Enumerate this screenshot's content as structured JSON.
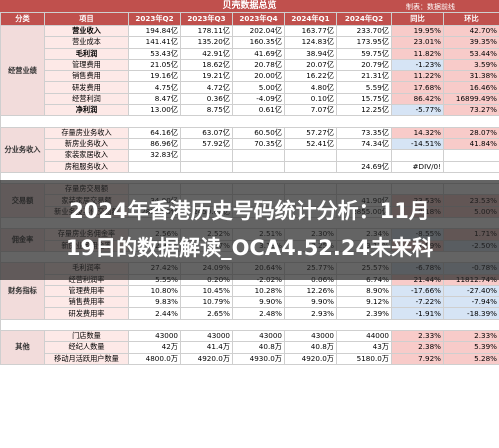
{
  "header": {
    "title": "贝壳数据总览",
    "note": "制表：数据前线",
    "columns": [
      "分类",
      "项目",
      "2023年Q2",
      "2023年Q3",
      "2023年Q4",
      "2024年Q1",
      "2024年Q2",
      "同比",
      "环比"
    ]
  },
  "overlay": {
    "line1": "2024年香港历史号码统计分析：11月",
    "line2": "19日的数据解读_OCA4.52.24未来科"
  },
  "groups": [
    {
      "name": "经营业绩",
      "rows": [
        {
          "item": "营业收入",
          "vals": [
            "194.84亿",
            "178.11亿",
            "202.04亿",
            "163.77亿",
            "233.70亿"
          ],
          "yoy": "19.95%",
          "qoq": "42.70%"
        },
        {
          "item": "营业成本",
          "vals": [
            "141.41亿",
            "135.20亿",
            "160.35亿",
            "124.83亿",
            "173.95亿"
          ],
          "yoy": "23.01%",
          "qoq": "39.35%"
        },
        {
          "item": "毛利润",
          "vals": [
            "53.43亿",
            "42.91亿",
            "41.69亿",
            "38.94亿",
            "59.75亿"
          ],
          "yoy": "11.82%",
          "qoq": "53.44%"
        },
        {
          "item": "管理费用",
          "vals": [
            "21.05亿",
            "18.62亿",
            "20.78亿",
            "20.07亿",
            "20.79亿"
          ],
          "yoy": "-1.23%",
          "qoq": "3.59%"
        },
        {
          "item": "销售费用",
          "vals": [
            "19.16亿",
            "19.21亿",
            "20.00亿",
            "16.22亿",
            "21.31亿"
          ],
          "yoy": "11.22%",
          "qoq": "31.38%"
        },
        {
          "item": "研发费用",
          "vals": [
            "4.75亿",
            "4.72亿",
            "5.00亿",
            "4.80亿",
            "5.59亿"
          ],
          "yoy": "17.68%",
          "qoq": "16.46%"
        },
        {
          "item": "经营利润",
          "vals": [
            "8.47亿",
            "0.36亿",
            "-4.09亿",
            "0.10亿",
            "15.75亿"
          ],
          "yoy": "86.42%",
          "qoq": "16899.49%"
        },
        {
          "item": "净利润",
          "vals": [
            "13.00亿",
            "8.75亿",
            "0.61亿",
            "7.07亿",
            "12.25亿"
          ],
          "yoy": "-5.77%",
          "qoq": "73.27%"
        }
      ]
    },
    {
      "name": "分业务收入",
      "rows": [
        {
          "item": "存量房业务收入",
          "vals": [
            "64.16亿",
            "63.07亿",
            "60.50亿",
            "57.27亿",
            "73.35亿"
          ],
          "yoy": "14.32%",
          "qoq": "28.07%"
        },
        {
          "item": "新房业务收入",
          "vals": [
            "86.96亿",
            "57.92亿",
            "70.35亿",
            "52.41亿",
            "74.34亿"
          ],
          "yoy": "-14.51%",
          "qoq": "41.84%"
        },
        {
          "item": "家装家居收入",
          "vals": [
            "32.83亿",
            "",
            "",
            "",
            "",
            ""
          ],
          "yoy": "",
          "qoq": ""
        },
        {
          "item": "房租服务收入",
          "vals": [
            "",
            "",
            "",
            "",
            "24.69亿"
          ],
          "yoy": "#DIV/0!",
          "qoq": ""
        }
      ]
    },
    {
      "name": "交易额",
      "rows": [
        {
          "item": "存量房交易额",
          "vals": [
            "",
            "",
            "",
            "",
            "",
            ""
          ],
          "yoy": "",
          "qoq": ""
        },
        {
          "item": "家装家居交易额",
          "vals": [
            "34.00亿",
            "",
            "",
            "",
            "41.90亿"
          ],
          "yoy": "23.53%",
          "qoq": "23.53%"
        },
        {
          "item": "新业务及其他交易额",
          "vals": [
            "2850.00亿",
            "2450.00亿",
            "",
            "",
            "2855.00亿"
          ],
          "yoy": "0.18%",
          "qoq": "5.00%"
        }
      ]
    },
    {
      "name": "佣金率",
      "rows": [
        {
          "item": "存量房业务佣金率",
          "vals": [
            "2.56%",
            "2.52%",
            "2.51%",
            "2.30%",
            "2.34%"
          ],
          "yoy": "-8.55%",
          "qoq": "1.71%"
        },
        {
          "item": "新房业务佣金率",
          "vals": [
            "2.95%",
            "3.07%",
            "3.18%",
            "3.25%",
            "3.17%"
          ],
          "yoy": "7.59%",
          "qoq": "-2.50%"
        }
      ]
    },
    {
      "name": "财务指标",
      "rows": [
        {
          "item": "毛利润率",
          "vals": [
            "27.42%",
            "24.09%",
            "20.64%",
            "25.77%",
            "25.57%"
          ],
          "yoy": "-6.78%",
          "qoq": "-0.78%"
        },
        {
          "item": "经营利润率",
          "vals": [
            "5.55%",
            "0.20%",
            "-2.02%",
            "0.06%",
            "6.74%"
          ],
          "yoy": "21.44%",
          "qoq": "11812.74%"
        },
        {
          "item": "管理费用率",
          "vals": [
            "10.80%",
            "10.45%",
            "10.28%",
            "12.26%",
            "8.90%"
          ],
          "yoy": "-17.66%",
          "qoq": "-27.40%"
        },
        {
          "item": "销售费用率",
          "vals": [
            "9.83%",
            "10.79%",
            "9.90%",
            "9.90%",
            "9.12%"
          ],
          "yoy": "-7.22%",
          "qoq": "-7.94%"
        },
        {
          "item": "研发费用率",
          "vals": [
            "2.44%",
            "2.65%",
            "2.48%",
            "2.93%",
            "2.39%"
          ],
          "yoy": "-1.91%",
          "qoq": "-18.39%"
        }
      ]
    },
    {
      "name": "其他",
      "rows": [
        {
          "item": "门店数量",
          "vals": [
            "43000",
            "43000",
            "43000",
            "43000",
            "44000"
          ],
          "yoy": "2.33%",
          "qoq": "2.33%"
        },
        {
          "item": "经纪人数量",
          "vals": [
            "42万",
            "41.4万",
            "40.8万",
            "40.8万",
            "43万"
          ],
          "yoy": "2.38%",
          "qoq": "5.39%"
        },
        {
          "item": "移动月活跃用户数量",
          "vals": [
            "4800.0万",
            "4920.0万",
            "4930.0万",
            "4920.0万",
            "5180.0万"
          ],
          "yoy": "7.92%",
          "qoq": "5.28%"
        }
      ]
    }
  ]
}
